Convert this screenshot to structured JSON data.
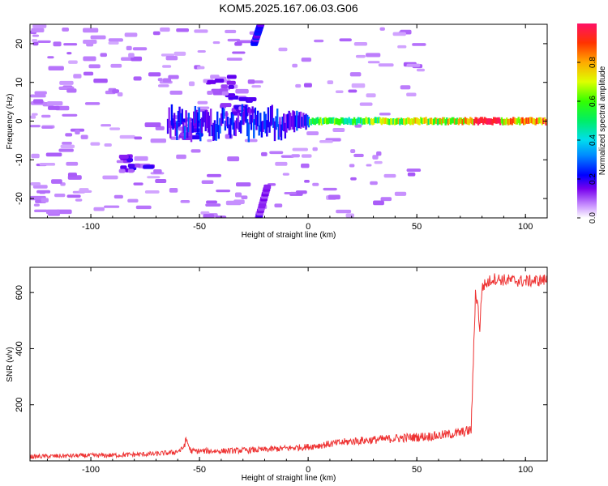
{
  "title": "KOM5.2025.167.06.03.G06",
  "chart_data": [
    {
      "type": "heatmap",
      "xlabel": "Height of straight line (km)",
      "ylabel": "Frequency (Hz)",
      "xlim": [
        -128,
        110
      ],
      "ylim": [
        -25,
        25
      ],
      "xticks": [
        -100,
        -50,
        0,
        50,
        100
      ],
      "yticks": [
        -20,
        -10,
        0,
        10,
        20
      ],
      "colorbar": {
        "label": "Normalized spectral amplitude",
        "range": [
          0,
          1
        ],
        "ticks": [
          "0.0",
          "0.2",
          "0.4",
          "0.6",
          "0.8"
        ]
      },
      "ridge": {
        "frequency_hz": 0,
        "x_start": -65,
        "x_end": 110,
        "amplitude_min": 0.2,
        "amplitude_max": 1.0
      },
      "features": [
        {
          "kind": "streak",
          "x": [
            -25,
            -22
          ],
          "y": [
            20,
            25
          ],
          "amplitude": 0.2
        },
        {
          "kind": "streak",
          "x": [
            -23,
            -19
          ],
          "y": [
            -25,
            -17
          ],
          "amplitude": 0.15
        },
        {
          "kind": "blob",
          "x": -58,
          "y": -2,
          "amplitude": 0.18
        },
        {
          "kind": "blob",
          "x": -35,
          "y": 4,
          "amplitude": 0.15
        },
        {
          "kind": "blob",
          "x": -82,
          "y": -11,
          "amplitude": 0.15
        },
        {
          "kind": "blob",
          "x": -42,
          "y": 9,
          "amplitude": 0.12
        }
      ],
      "grid": false,
      "grid_values": []
    },
    {
      "type": "line",
      "xlabel": "Height of straight line (km)",
      "ylabel": "SNR (v/v)",
      "xlim": [
        -128,
        110
      ],
      "ylim": [
        0,
        690
      ],
      "xticks": [
        -100,
        -50,
        0,
        50,
        100
      ],
      "yticks": [
        200,
        400,
        600
      ],
      "color": "#ee3333",
      "grid": false,
      "series": [
        {
          "x": [
            -128,
            -110,
            -90,
            -70,
            -62,
            -58,
            -56,
            -54,
            -40,
            -20,
            -10,
            0,
            10,
            20,
            30,
            40,
            50,
            60,
            70,
            75,
            76,
            77,
            78,
            79,
            80,
            85,
            90,
            100,
            110
          ],
          "y": [
            15,
            18,
            20,
            25,
            30,
            40,
            75,
            35,
            35,
            40,
            45,
            50,
            60,
            70,
            75,
            80,
            85,
            90,
            100,
            110,
            350,
            600,
            560,
            470,
            620,
            650,
            645,
            640,
            645
          ]
        }
      ]
    }
  ]
}
